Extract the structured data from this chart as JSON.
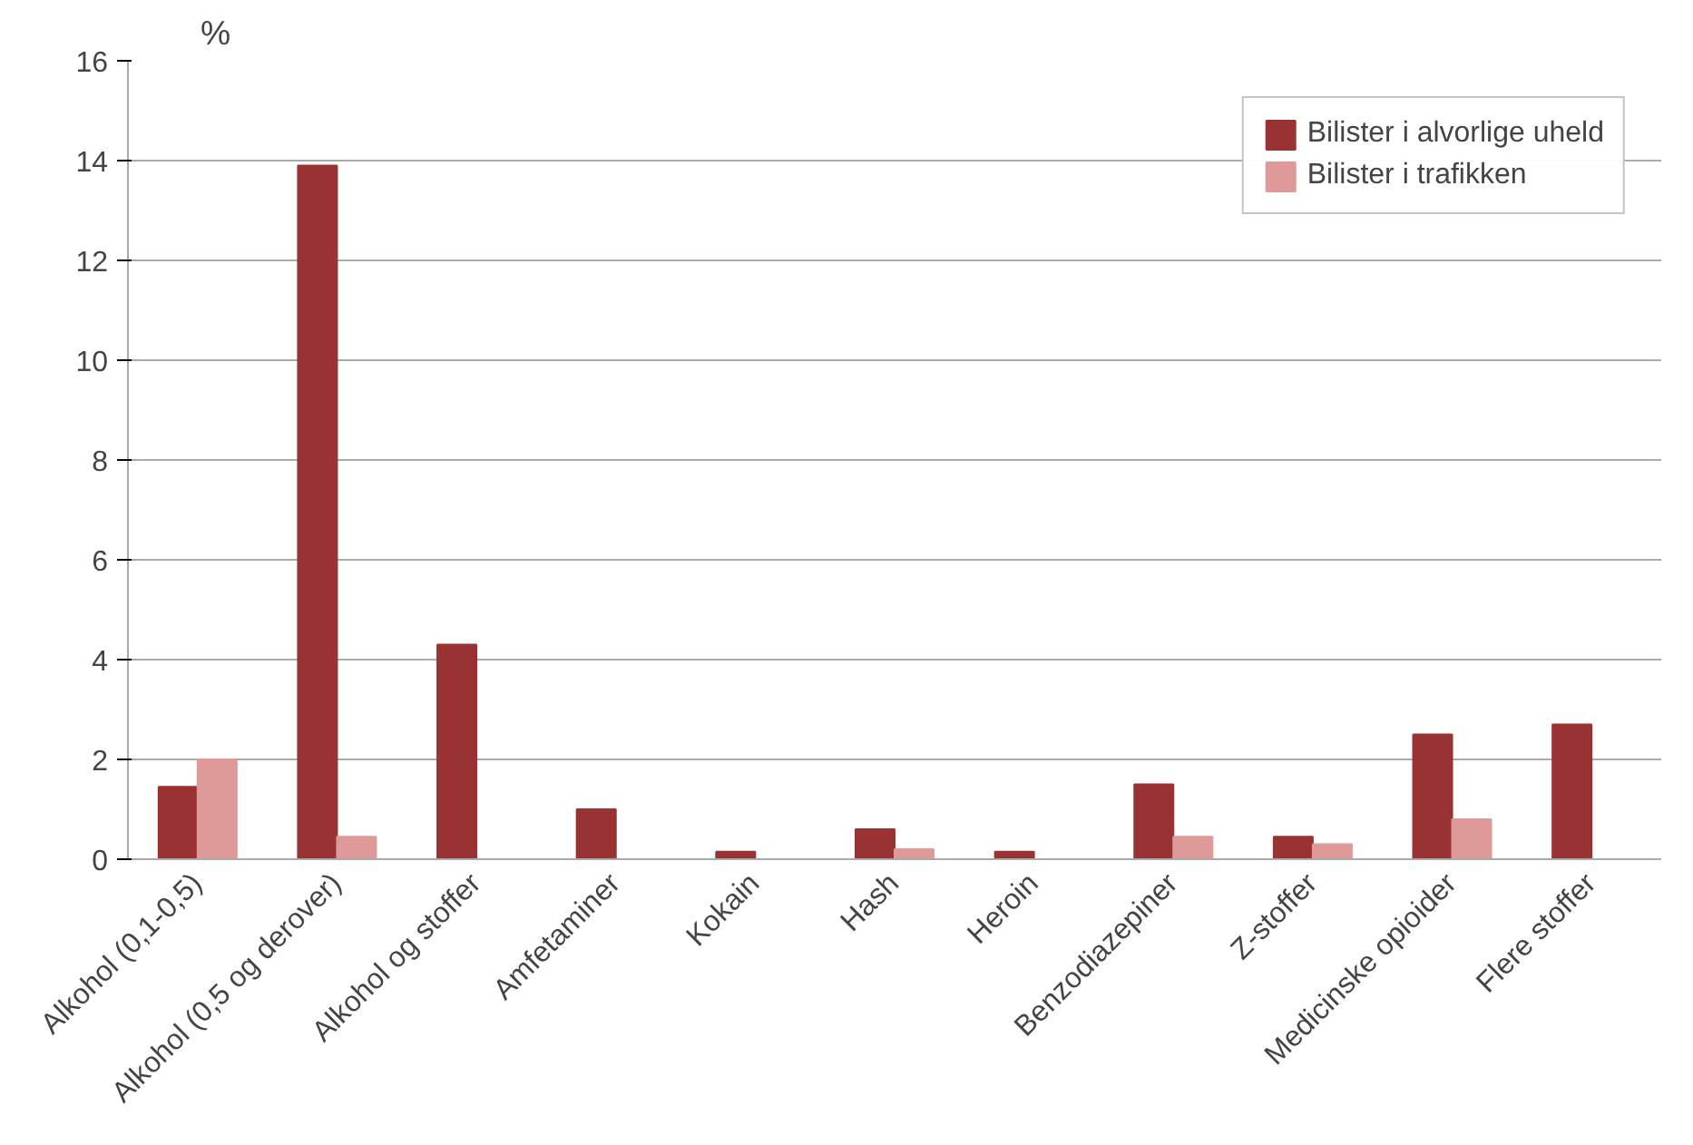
{
  "chart_data": {
    "type": "bar",
    "ylabel": "%",
    "categories": [
      "Alkohol (0,1-0,5)",
      "Alkohol (0,5 og derover)",
      "Alkohol og stoffer",
      "Amfetaminer",
      "Kokain",
      "Hash",
      "Heroin",
      "Benzodiazepiner",
      "Z-stoffer",
      "Medicinske opioider",
      "Flere stoffer"
    ],
    "series": [
      {
        "name": "Bilister i alvorlige uheld",
        "color": "#993333",
        "values": [
          1.45,
          13.9,
          4.3,
          1.0,
          0.15,
          0.6,
          0.15,
          1.5,
          0.45,
          2.5,
          2.7
        ]
      },
      {
        "name": "Bilister i trafikken",
        "color": "#e09999",
        "values": [
          2.0,
          0.45,
          0,
          0,
          0,
          0.2,
          0,
          0.45,
          0.3,
          0.8,
          0
        ]
      }
    ],
    "ylim": [
      0,
      16
    ],
    "yticks": [
      0,
      2,
      4,
      6,
      8,
      10,
      12,
      14,
      16
    ],
    "grid": "y",
    "legend": "top right"
  }
}
